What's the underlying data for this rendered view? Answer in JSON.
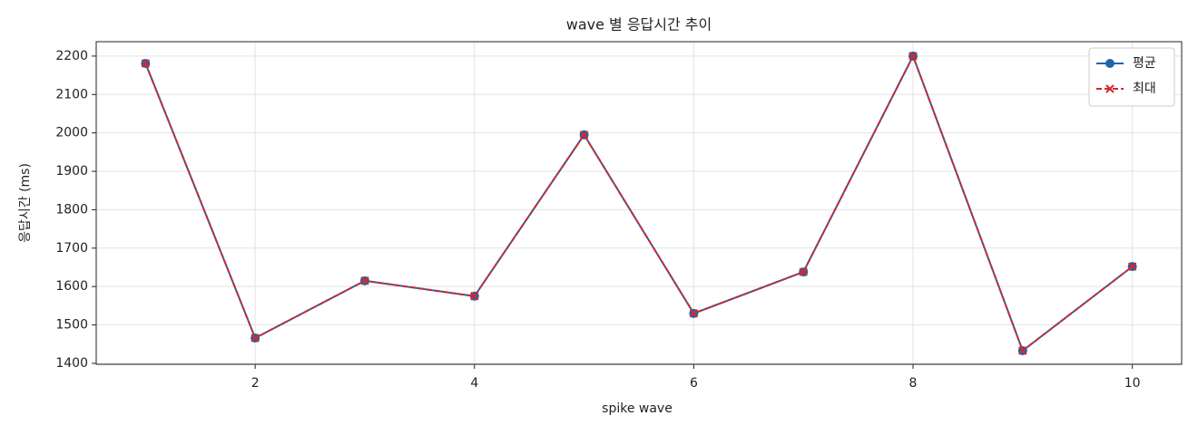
{
  "chart_data": {
    "type": "line",
    "title": "wave 별 응답시간 추이",
    "x_label": "spike wave",
    "y_label": "응답시간 (ms)",
    "x": [
      1,
      2,
      3,
      4,
      5,
      6,
      7,
      8,
      9,
      10
    ],
    "series": [
      {
        "name": "평균",
        "color": "#1f65b0",
        "marker": "circle",
        "dash": false,
        "values": [
          2181,
          1466,
          1615,
          1575,
          1995,
          1530,
          1638,
          2200,
          1433,
          1652
        ]
      },
      {
        "name": "최대",
        "color": "#d62728",
        "marker": "x",
        "dash": true,
        "values": [
          2181,
          1466,
          1615,
          1575,
          1995,
          1530,
          1638,
          2200,
          1433,
          1652
        ]
      }
    ],
    "xlim": [
      0.55,
      10.45
    ],
    "xticks": [
      2,
      4,
      6,
      8,
      10
    ],
    "ylim": [
      1397.5,
      2237.5
    ],
    "yticks": [
      1400,
      1500,
      1600,
      1700,
      1800,
      1900,
      2000,
      2100,
      2200
    ],
    "grid": true,
    "legend": "upper right"
  }
}
